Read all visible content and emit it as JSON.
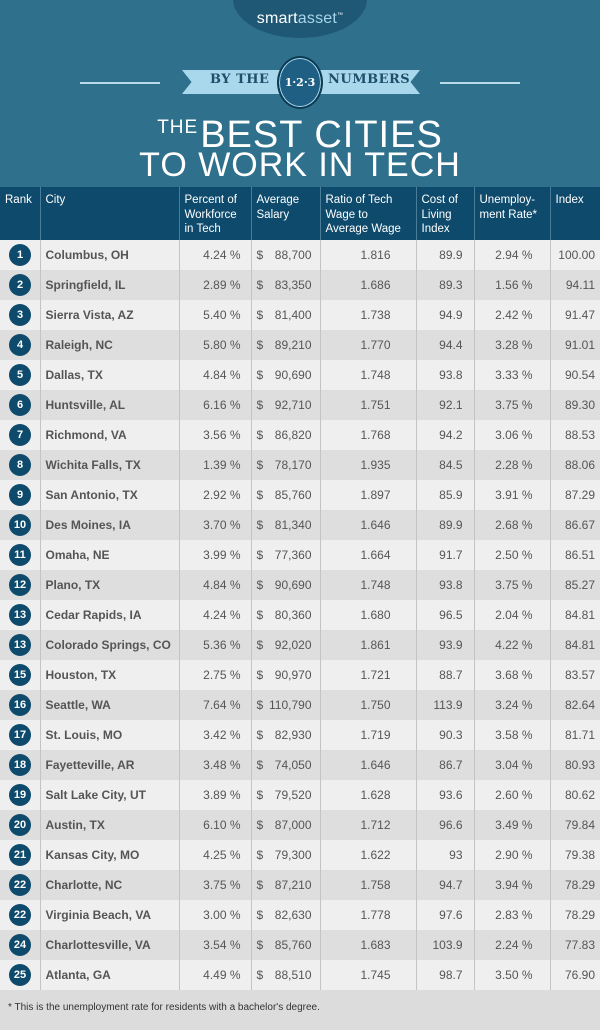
{
  "brand": {
    "logo_part1": "smart",
    "logo_part2": "asset",
    "trademark": "™"
  },
  "banner": {
    "left": "BY THE",
    "badge": "1·2·3",
    "right": "NUMBERS"
  },
  "title": {
    "prefix": "THE",
    "line1": "BEST CITIES",
    "line2": "TO WORK IN TECH"
  },
  "colors": {
    "background": "#2f708d",
    "header": "#0e4a6c",
    "row_light": "#efefef",
    "row_dark": "#dedede"
  },
  "table": {
    "headers": [
      "Rank",
      "City",
      "Percent of Workforce in Tech",
      "Average Salary",
      "Ratio of Tech Wage to Average Wage",
      "Cost of Living Index",
      "Unemploy-ment Rate*",
      "Index"
    ],
    "rows": [
      {
        "rank": "1",
        "city": "Columbus, OH",
        "pct": "4.24 %",
        "salary": "88,700",
        "ratio": "1.816",
        "col": "89.9",
        "unemp": "2.94 %",
        "index": "100.00"
      },
      {
        "rank": "2",
        "city": "Springfield, IL",
        "pct": "2.89 %",
        "salary": "83,350",
        "ratio": "1.686",
        "col": "89.3",
        "unemp": "1.56 %",
        "index": "94.11"
      },
      {
        "rank": "3",
        "city": "Sierra Vista, AZ",
        "pct": "5.40 %",
        "salary": "81,400",
        "ratio": "1.738",
        "col": "94.9",
        "unemp": "2.42 %",
        "index": "91.47"
      },
      {
        "rank": "4",
        "city": "Raleigh, NC",
        "pct": "5.80 %",
        "salary": "89,210",
        "ratio": "1.770",
        "col": "94.4",
        "unemp": "3.28 %",
        "index": "91.01"
      },
      {
        "rank": "5",
        "city": "Dallas, TX",
        "pct": "4.84 %",
        "salary": "90,690",
        "ratio": "1.748",
        "col": "93.8",
        "unemp": "3.33 %",
        "index": "90.54"
      },
      {
        "rank": "6",
        "city": "Huntsville, AL",
        "pct": "6.16 %",
        "salary": "92,710",
        "ratio": "1.751",
        "col": "92.1",
        "unemp": "3.75 %",
        "index": "89.30"
      },
      {
        "rank": "7",
        "city": "Richmond, VA",
        "pct": "3.56 %",
        "salary": "86,820",
        "ratio": "1.768",
        "col": "94.2",
        "unemp": "3.06 %",
        "index": "88.53"
      },
      {
        "rank": "8",
        "city": "Wichita Falls, TX",
        "pct": "1.39 %",
        "salary": "78,170",
        "ratio": "1.935",
        "col": "84.5",
        "unemp": "2.28 %",
        "index": "88.06"
      },
      {
        "rank": "9",
        "city": "San Antonio, TX",
        "pct": "2.92 %",
        "salary": "85,760",
        "ratio": "1.897",
        "col": "85.9",
        "unemp": "3.91 %",
        "index": "87.29"
      },
      {
        "rank": "10",
        "city": "Des Moines, IA",
        "pct": "3.70 %",
        "salary": "81,340",
        "ratio": "1.646",
        "col": "89.9",
        "unemp": "2.68 %",
        "index": "86.67"
      },
      {
        "rank": "11",
        "city": "Omaha, NE",
        "pct": "3.99 %",
        "salary": "77,360",
        "ratio": "1.664",
        "col": "91.7",
        "unemp": "2.50 %",
        "index": "86.51"
      },
      {
        "rank": "12",
        "city": "Plano, TX",
        "pct": "4.84 %",
        "salary": "90,690",
        "ratio": "1.748",
        "col": "93.8",
        "unemp": "3.75 %",
        "index": "85.27"
      },
      {
        "rank": "13",
        "city": "Cedar Rapids, IA",
        "pct": "4.24 %",
        "salary": "80,360",
        "ratio": "1.680",
        "col": "96.5",
        "unemp": "2.04 %",
        "index": "84.81"
      },
      {
        "rank": "13",
        "city": "Colorado Springs, CO",
        "pct": "5.36 %",
        "salary": "92,020",
        "ratio": "1.861",
        "col": "93.9",
        "unemp": "4.22 %",
        "index": "84.81"
      },
      {
        "rank": "15",
        "city": "Houston, TX",
        "pct": "2.75 %",
        "salary": "90,970",
        "ratio": "1.721",
        "col": "88.7",
        "unemp": "3.68 %",
        "index": "83.57"
      },
      {
        "rank": "16",
        "city": "Seattle, WA",
        "pct": "7.64 %",
        "salary": "110,790",
        "ratio": "1.750",
        "col": "113.9",
        "unemp": "3.24 %",
        "index": "82.64"
      },
      {
        "rank": "17",
        "city": "St. Louis, MO",
        "pct": "3.42 %",
        "salary": "82,930",
        "ratio": "1.719",
        "col": "90.3",
        "unemp": "3.58 %",
        "index": "81.71"
      },
      {
        "rank": "18",
        "city": "Fayetteville, AR",
        "pct": "3.48 %",
        "salary": "74,050",
        "ratio": "1.646",
        "col": "86.7",
        "unemp": "3.04 %",
        "index": "80.93"
      },
      {
        "rank": "19",
        "city": "Salt Lake City, UT",
        "pct": "3.89 %",
        "salary": "79,520",
        "ratio": "1.628",
        "col": "93.6",
        "unemp": "2.60 %",
        "index": "80.62"
      },
      {
        "rank": "20",
        "city": "Austin, TX",
        "pct": "6.10 %",
        "salary": "87,000",
        "ratio": "1.712",
        "col": "96.6",
        "unemp": "3.49 %",
        "index": "79.84"
      },
      {
        "rank": "21",
        "city": "Kansas City, MO",
        "pct": "4.25 %",
        "salary": "79,300",
        "ratio": "1.622",
        "col": "93",
        "unemp": "2.90 %",
        "index": "79.38"
      },
      {
        "rank": "22",
        "city": "Charlotte, NC",
        "pct": "3.75 %",
        "salary": "87,210",
        "ratio": "1.758",
        "col": "94.7",
        "unemp": "3.94 %",
        "index": "78.29"
      },
      {
        "rank": "22",
        "city": "Virginia Beach, VA",
        "pct": "3.00 %",
        "salary": "82,630",
        "ratio": "1.778",
        "col": "97.6",
        "unemp": "2.83 %",
        "index": "78.29"
      },
      {
        "rank": "24",
        "city": "Charlottesville, VA",
        "pct": "3.54 %",
        "salary": "85,760",
        "ratio": "1.683",
        "col": "103.9",
        "unemp": "2.24 %",
        "index": "77.83"
      },
      {
        "rank": "25",
        "city": "Atlanta, GA",
        "pct": "4.49 %",
        "salary": "88,510",
        "ratio": "1.745",
        "col": "98.7",
        "unemp": "3.50 %",
        "index": "76.90"
      }
    ],
    "currency_symbol": "$"
  },
  "footnote": "* This is the unemployment rate for residents with a bachelor's degree."
}
